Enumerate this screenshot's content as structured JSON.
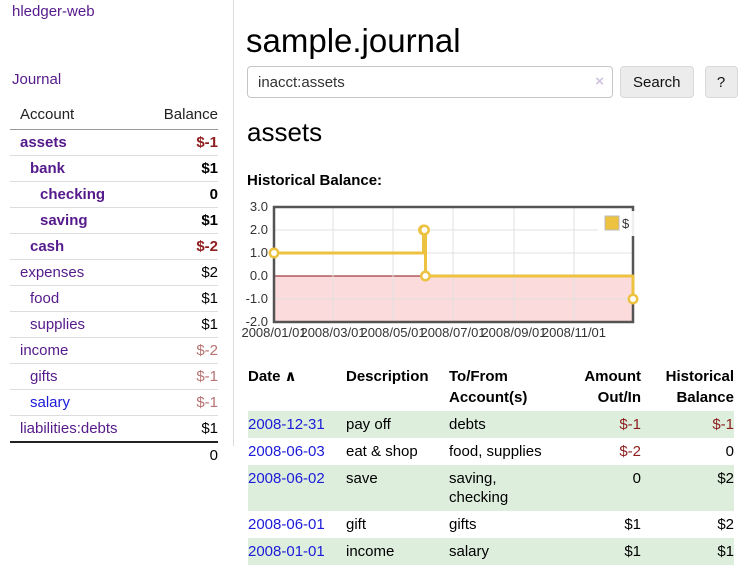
{
  "app": {
    "brand": "hledger-web",
    "nav": {
      "journal": "Journal"
    }
  },
  "colors": {
    "accent_purple": "#551a8b",
    "link_blue": "#1b1bd8",
    "negative_strong": "#8f1d1d",
    "negative_soft": "#b87272",
    "stripe_green": "#ddeedd",
    "series_yellow": "#edc240",
    "chart_negative_bg": "#fbdbdb",
    "zero_line": "#871111"
  },
  "sidebar": {
    "header": {
      "account": "Account",
      "balance": "Balance"
    },
    "rows": [
      {
        "name": "assets",
        "balance": "$-1",
        "level": 1
      },
      {
        "name": "bank",
        "balance": "$1",
        "level": 2
      },
      {
        "name": "checking",
        "balance": "0",
        "level": 3
      },
      {
        "name": "saving",
        "balance": "$1",
        "level": 3
      },
      {
        "name": "cash",
        "balance": "$-2",
        "level": 2
      },
      {
        "name": "expenses",
        "balance": "$2",
        "level": 1
      },
      {
        "name": "food",
        "balance": "$1",
        "level": 2
      },
      {
        "name": "supplies",
        "balance": "$1",
        "level": 2
      },
      {
        "name": "income",
        "balance": "$-2",
        "level": 1
      },
      {
        "name": "gifts",
        "balance": "$-1",
        "level": 2
      },
      {
        "name": "salary",
        "balance": "$-1",
        "level": 2
      },
      {
        "name": "liabilities:debts",
        "balance": "$1",
        "level": 1
      }
    ],
    "total": "0"
  },
  "main": {
    "title": "sample.journal",
    "search": {
      "value": "inacct:assets",
      "clear_icon": "×",
      "search_button": "Search",
      "help_button": "?"
    },
    "account_heading": "assets",
    "section_label": "Historical Balance:"
  },
  "chart_data": {
    "type": "line",
    "title": "Historical Balance:",
    "series": [
      {
        "name": "$",
        "color": "#edc240",
        "steps": true,
        "points": [
          [
            "2008-01-01",
            1
          ],
          [
            "2008-06-01",
            2
          ],
          [
            "2008-06-02",
            2
          ],
          [
            "2008-06-03",
            0
          ],
          [
            "2008-12-31",
            -1
          ]
        ]
      }
    ],
    "x_range": [
      "2008-01-01",
      "2008-12-31"
    ],
    "ylim": [
      -2,
      3
    ],
    "yticks": [
      3,
      2,
      1,
      0,
      -1,
      -2
    ],
    "ytick_labels": [
      "3.0",
      "2.0",
      "1.0",
      "0.0",
      "-1.0",
      "-2.0"
    ],
    "xticks": [
      "2008/01/01",
      "2008/03/01",
      "2008/05/01",
      "2008/07/01",
      "2008/09/01",
      "2008/11/01"
    ],
    "grid": true,
    "legend_position": "top-right",
    "negative_region_color": "#fbdbdb",
    "zero_line_color": "#871111"
  },
  "table": {
    "headers": {
      "date": "Date",
      "sort_asc_icon": "∧",
      "description": "Description",
      "tofrom_line1": "To/From",
      "tofrom_line2": "Account(s)",
      "amount_line1": "Amount",
      "amount_line2": "Out/In",
      "hist_line1": "Historical",
      "hist_line2": "Balance"
    },
    "rows": [
      {
        "date": "2008-12-31",
        "description": "pay off",
        "accounts": "debts",
        "amount": "$-1",
        "balance": "$-1"
      },
      {
        "date": "2008-06-03",
        "description": "eat & shop",
        "accounts": "food, supplies",
        "amount": "$-2",
        "balance": "0"
      },
      {
        "date": "2008-06-02",
        "description": "save",
        "accounts": "saving, checking",
        "amount": "0",
        "balance": "$2"
      },
      {
        "date": "2008-06-01",
        "description": "gift",
        "accounts": "gifts",
        "amount": "$1",
        "balance": "$2"
      },
      {
        "date": "2008-01-01",
        "description": "income",
        "accounts": "salary",
        "amount": "$1",
        "balance": "$1"
      }
    ]
  }
}
